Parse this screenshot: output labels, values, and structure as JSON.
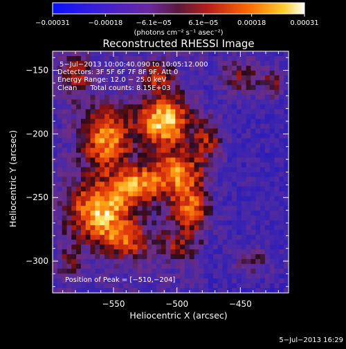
{
  "chart_data": {
    "type": "heatmap",
    "title": "Reconstructed RHESSI Image",
    "xlabel": "Heliocentric X (arcsec)",
    "ylabel": "Heliocentric Y (arcsec)",
    "xlim": [
      -598,
      -412
    ],
    "ylim": [
      -325,
      -135
    ],
    "x_ticks": [
      -550,
      -500,
      -450
    ],
    "x_tick_labels": [
      "−550",
      "−500",
      "−450"
    ],
    "y_ticks": [
      -150,
      -200,
      -250,
      -300
    ],
    "y_tick_labels": [
      "−150",
      "−200",
      "−250",
      "−300"
    ],
    "colorbar": {
      "min": -0.00031,
      "max": 0.00031,
      "ticks": [
        -0.00031,
        -0.00018,
        -6.1e-05,
        6.1e-05,
        0.00018,
        0.00031
      ],
      "tick_labels": [
        "−0.00031",
        "−0.00018",
        "−6.1e−05",
        "6.1e−05",
        "0.00018",
        "0.00031"
      ],
      "unit_label": "(photons cm⁻² s⁻¹ asec⁻²)"
    },
    "peak_position": [
      -510,
      -204
    ],
    "annotations": [
      "5−Jul−2013 10:00:40.090 to 10:05:12.000",
      "Detectors: 3F 5F 6F 7F 8F 9F, Att 0",
      "Energy Range: 12.0 − 25.0 keV",
      "Clean      Total counts: 8.15E+03",
      "Position of Peak = [−510,−204]"
    ],
    "footer": "5−Jul−2013 16:29",
    "colors": {
      "background": "#000000",
      "low": "#1a10ff",
      "mid": "#7a2e8a",
      "high": "#ffffff"
    }
  }
}
